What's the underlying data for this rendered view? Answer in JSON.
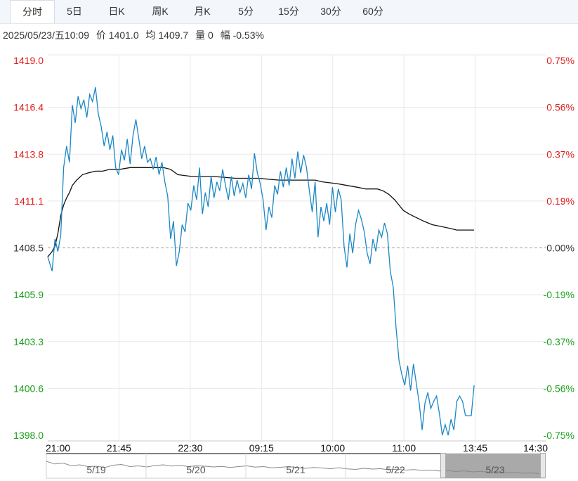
{
  "tabs": [
    "分时",
    "5日",
    "日K",
    "周K",
    "月K",
    "5分",
    "15分",
    "30分",
    "60分"
  ],
  "active_tab": 0,
  "info": {
    "datetime": "2025/05/23/五10:09",
    "price": "价 1401.0",
    "avg": "均 1409.7",
    "volume": "量 0",
    "change": "幅 -0.53%"
  },
  "colors": {
    "up": "#e02020",
    "down": "#1ea01e",
    "price_line": "#1b87c5",
    "avg_line": "#111111",
    "grid": "#e8e8e8",
    "baseline": "#999999"
  },
  "chart_data": {
    "type": "line",
    "ylim": [
      1398.0,
      1419.0
    ],
    "base_price": 1408.5,
    "y_ticks_left": [
      "1419.0",
      "1416.4",
      "1413.8",
      "1411.1",
      "1408.5",
      "1405.9",
      "1403.3",
      "1400.6",
      "1398.0"
    ],
    "y_ticks_right": [
      "0.75%",
      "0.56%",
      "0.37%",
      "0.19%",
      "0.00%",
      "-0.19%",
      "-0.37%",
      "-0.56%",
      "-0.75%"
    ],
    "x_ticks": [
      "21:00",
      "21:45",
      "22:30",
      "09:15",
      "10:00",
      "11:00",
      "13:45",
      "14:30"
    ],
    "session_slots": 345,
    "price_series": {
      "values": [
        [
          0,
          1408.0
        ],
        [
          3,
          1407.2
        ],
        [
          5,
          1409.0
        ],
        [
          7,
          1408.3
        ],
        [
          9,
          1409.2
        ],
        [
          11,
          1413.0
        ],
        [
          13,
          1414.2
        ],
        [
          15,
          1413.3
        ],
        [
          17,
          1416.5
        ],
        [
          19,
          1415.5
        ],
        [
          21,
          1417.0
        ],
        [
          23,
          1416.3
        ],
        [
          25,
          1416.8
        ],
        [
          27,
          1415.8
        ],
        [
          29,
          1417.1
        ],
        [
          31,
          1416.7
        ],
        [
          33,
          1417.5
        ],
        [
          35,
          1416.0
        ],
        [
          37,
          1415.3
        ],
        [
          39,
          1414.2
        ],
        [
          41,
          1415.0
        ],
        [
          43,
          1414.0
        ],
        [
          45,
          1414.8
        ],
        [
          47,
          1413.0
        ],
        [
          49,
          1412.6
        ],
        [
          51,
          1414.0
        ],
        [
          53,
          1413.4
        ],
        [
          55,
          1414.6
        ],
        [
          57,
          1413.2
        ],
        [
          59,
          1414.8
        ],
        [
          61,
          1415.7
        ],
        [
          63,
          1414.6
        ],
        [
          65,
          1413.5
        ],
        [
          67,
          1414.2
        ],
        [
          69,
          1413.3
        ],
        [
          71,
          1413.5
        ],
        [
          73,
          1412.9
        ],
        [
          75,
          1413.6
        ],
        [
          77,
          1412.6
        ],
        [
          79,
          1413.3
        ],
        [
          81,
          1412.2
        ],
        [
          83,
          1411.4
        ],
        [
          85,
          1409.0
        ],
        [
          87,
          1410.0
        ],
        [
          89,
          1407.5
        ],
        [
          91,
          1408.3
        ],
        [
          93,
          1409.8
        ],
        [
          95,
          1409.4
        ],
        [
          97,
          1411.0
        ],
        [
          99,
          1410.6
        ],
        [
          101,
          1412.0
        ],
        [
          103,
          1411.2
        ],
        [
          105,
          1413.0
        ],
        [
          107,
          1410.4
        ],
        [
          109,
          1411.6
        ],
        [
          111,
          1410.8
        ],
        [
          113,
          1412.5
        ],
        [
          115,
          1411.3
        ],
        [
          117,
          1412.2
        ],
        [
          119,
          1411.7
        ],
        [
          121,
          1412.9
        ],
        [
          123,
          1412.0
        ],
        [
          125,
          1411.2
        ],
        [
          127,
          1412.5
        ],
        [
          129,
          1411.4
        ],
        [
          131,
          1412.3
        ],
        [
          133,
          1411.6
        ],
        [
          135,
          1412.1
        ],
        [
          137,
          1411.3
        ],
        [
          139,
          1412.6
        ],
        [
          141,
          1411.8
        ],
        [
          143,
          1413.8
        ],
        [
          145,
          1412.7
        ],
        [
          147,
          1412.1
        ],
        [
          149,
          1411.2
        ],
        [
          151,
          1409.5
        ],
        [
          153,
          1410.8
        ],
        [
          155,
          1410.2
        ],
        [
          157,
          1412.0
        ],
        [
          159,
          1411.5
        ],
        [
          161,
          1412.8
        ],
        [
          163,
          1411.9
        ],
        [
          165,
          1413.0
        ],
        [
          167,
          1412.0
        ],
        [
          169,
          1413.5
        ],
        [
          171,
          1412.4
        ],
        [
          173,
          1413.9
        ],
        [
          175,
          1412.7
        ],
        [
          177,
          1413.7
        ],
        [
          179,
          1413.0
        ],
        [
          181,
          1411.7
        ],
        [
          183,
          1410.5
        ],
        [
          185,
          1412.2
        ],
        [
          187,
          1409.1
        ],
        [
          189,
          1410.8
        ],
        [
          191,
          1410.0
        ],
        [
          193,
          1411.0
        ],
        [
          195,
          1409.8
        ],
        [
          197,
          1411.9
        ],
        [
          199,
          1410.5
        ],
        [
          201,
          1411.8
        ],
        [
          203,
          1411.2
        ],
        [
          205,
          1408.6
        ],
        [
          207,
          1407.4
        ],
        [
          209,
          1409.3
        ],
        [
          211,
          1408.2
        ],
        [
          213,
          1409.8
        ],
        [
          215,
          1410.6
        ],
        [
          217,
          1410.1
        ],
        [
          219,
          1409.4
        ],
        [
          221,
          1408.2
        ],
        [
          223,
          1407.6
        ],
        [
          225,
          1409.0
        ],
        [
          227,
          1408.3
        ],
        [
          229,
          1409.5
        ],
        [
          231,
          1409.1
        ],
        [
          233,
          1409.9
        ],
        [
          235,
          1409.3
        ],
        [
          237,
          1407.2
        ],
        [
          239,
          1406.3
        ],
        [
          241,
          1404.0
        ],
        [
          243,
          1402.2
        ],
        [
          245,
          1401.4
        ],
        [
          247,
          1400.8
        ],
        [
          249,
          1401.9
        ],
        [
          251,
          1400.5
        ],
        [
          253,
          1402.0
        ],
        [
          255,
          1400.9
        ],
        [
          257,
          1399.8
        ],
        [
          259,
          1398.3
        ],
        [
          261,
          1399.8
        ],
        [
          263,
          1400.4
        ],
        [
          265,
          1399.5
        ],
        [
          267,
          1399.9
        ],
        [
          269,
          1400.2
        ],
        [
          271,
          1399.2
        ],
        [
          273,
          1398.0
        ],
        [
          275,
          1398.6
        ],
        [
          277,
          1398.0
        ],
        [
          279,
          1398.9
        ],
        [
          281,
          1398.3
        ],
        [
          283,
          1399.9
        ],
        [
          285,
          1400.2
        ],
        [
          287,
          1399.9
        ],
        [
          289,
          1399.1
        ],
        [
          291,
          1399.1
        ],
        [
          293,
          1399.1
        ],
        [
          295,
          1400.8
        ]
      ]
    },
    "avg_series": {
      "values": [
        [
          0,
          1408.0
        ],
        [
          3,
          1408.3
        ],
        [
          5,
          1408.6
        ],
        [
          7,
          1409.3
        ],
        [
          9,
          1410.3
        ],
        [
          11,
          1410.9
        ],
        [
          13,
          1411.3
        ],
        [
          15,
          1411.6
        ],
        [
          17,
          1412.0
        ],
        [
          20,
          1412.3
        ],
        [
          24,
          1412.6
        ],
        [
          28,
          1412.7
        ],
        [
          33,
          1412.8
        ],
        [
          38,
          1412.8
        ],
        [
          43,
          1412.9
        ],
        [
          50,
          1412.9
        ],
        [
          57,
          1413.0
        ],
        [
          65,
          1413.0
        ],
        [
          73,
          1413.0
        ],
        [
          80,
          1413.0
        ],
        [
          85,
          1412.9
        ],
        [
          90,
          1412.6
        ],
        [
          100,
          1412.5
        ],
        [
          115,
          1412.5
        ],
        [
          130,
          1412.4
        ],
        [
          145,
          1412.4
        ],
        [
          160,
          1412.3
        ],
        [
          175,
          1412.3
        ],
        [
          185,
          1412.3
        ],
        [
          190,
          1412.2
        ],
        [
          200,
          1412.1
        ],
        [
          207,
          1412.0
        ],
        [
          214,
          1411.9
        ],
        [
          220,
          1411.8
        ],
        [
          228,
          1411.8
        ],
        [
          232,
          1411.7
        ],
        [
          236,
          1411.5
        ],
        [
          240,
          1411.2
        ],
        [
          243,
          1410.9
        ],
        [
          246,
          1410.6
        ],
        [
          250,
          1410.4
        ],
        [
          255,
          1410.2
        ],
        [
          260,
          1410.0
        ],
        [
          266,
          1409.8
        ],
        [
          272,
          1409.7
        ],
        [
          278,
          1409.6
        ],
        [
          283,
          1409.5
        ],
        [
          288,
          1409.5
        ],
        [
          295,
          1409.5
        ]
      ]
    }
  },
  "navigator": {
    "date_labels": [
      "5/19",
      "5/20",
      "5/21",
      "5/22",
      "5/23"
    ]
  }
}
